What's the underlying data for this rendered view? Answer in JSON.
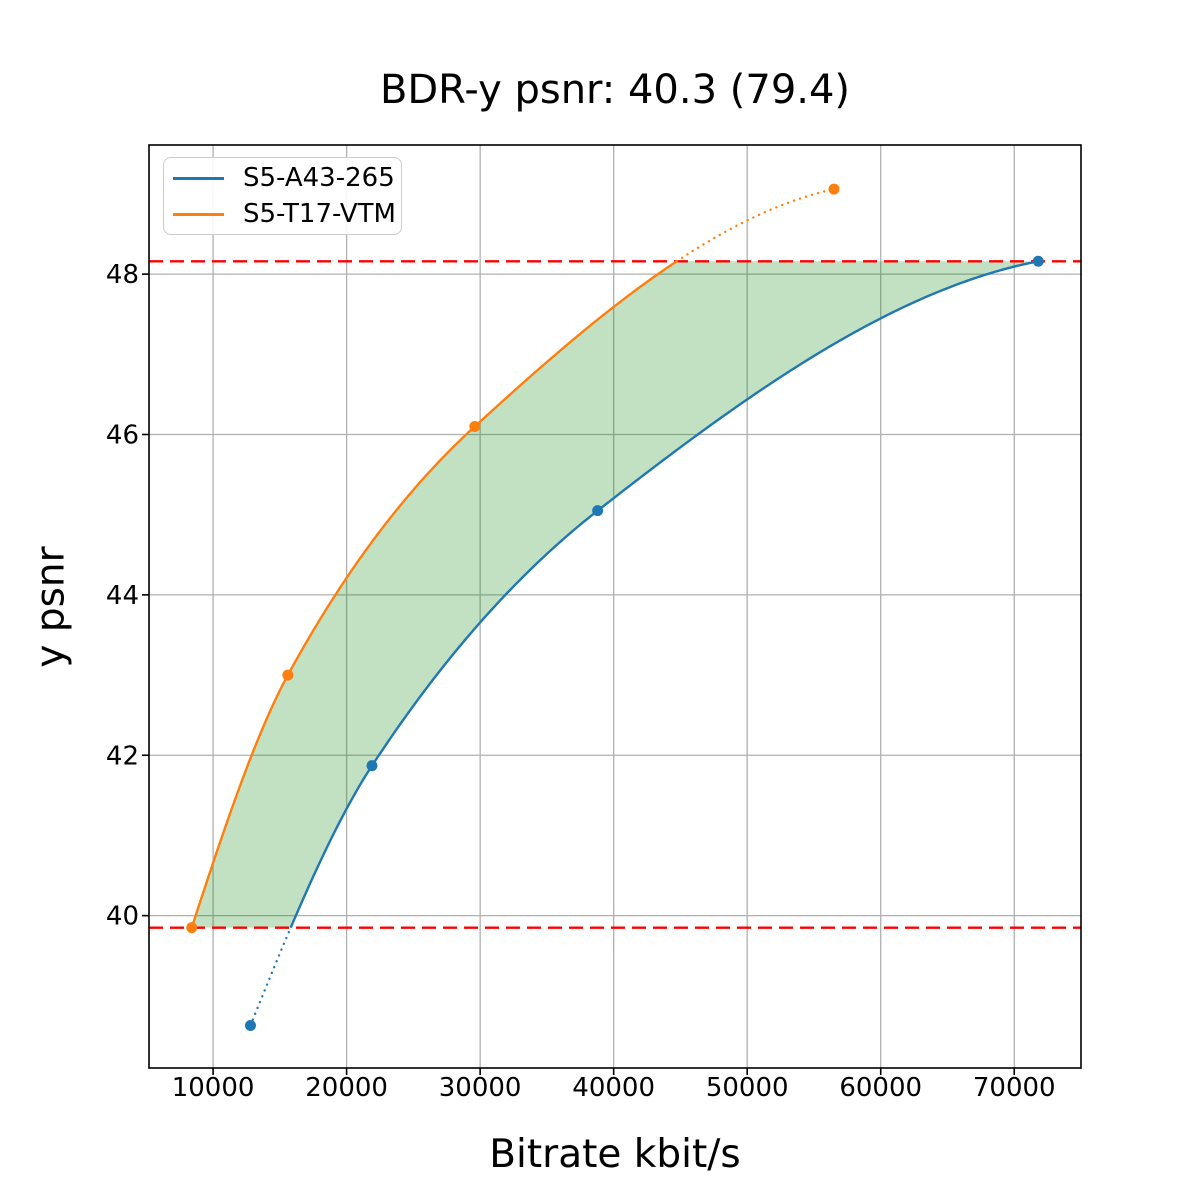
{
  "figure_title": "BDR-y psnr: 40.3 (79.4)",
  "chart_data": {
    "type": "line",
    "title": "BDR-y psnr: 40.3 (79.4)",
    "xlabel": "Bitrate kbit/s",
    "ylabel": "y psnr",
    "xlim": [
      5200,
      75000
    ],
    "ylim": [
      38.1,
      49.61
    ],
    "x_ticks": [
      10000,
      20000,
      30000,
      40000,
      50000,
      60000,
      70000
    ],
    "x_tick_labels": [
      "10000",
      "20000",
      "30000",
      "40000",
      "50000",
      "60000",
      "70000"
    ],
    "y_ticks": [
      40,
      42,
      44,
      46,
      48
    ],
    "y_tick_labels": [
      "40",
      "42",
      "44",
      "46",
      "48"
    ],
    "grid": true,
    "grid_color": "#b0b0b0",
    "legend_position": "upper left",
    "series": [
      {
        "name": "S5-A43-265",
        "color": "#1f77b4",
        "marker": "circle",
        "points": [
          [
            12800,
            38.63
          ],
          [
            21900,
            41.87
          ],
          [
            38800,
            45.05
          ],
          [
            71800,
            48.16
          ]
        ],
        "dotted_extrapolation": "below lower bound"
      },
      {
        "name": "S5-T17-VTM",
        "color": "#ff7f0e",
        "marker": "circle",
        "points": [
          [
            8400,
            39.85
          ],
          [
            15600,
            43.0
          ],
          [
            29600,
            46.1
          ],
          [
            56500,
            49.06
          ]
        ],
        "dotted_extrapolation": "above upper bound"
      }
    ],
    "reference_lines": [
      {
        "axis": "y",
        "value": 48.16,
        "color": "#ff0000",
        "style": "dashed"
      },
      {
        "axis": "y",
        "value": 39.85,
        "color": "#ff0000",
        "style": "dashed"
      }
    ],
    "shaded_region": {
      "description": "area between the two rate-distortion curves clipped to psnr range [39.85, 48.16]",
      "color": "#008000",
      "opacity": 0.24
    }
  }
}
